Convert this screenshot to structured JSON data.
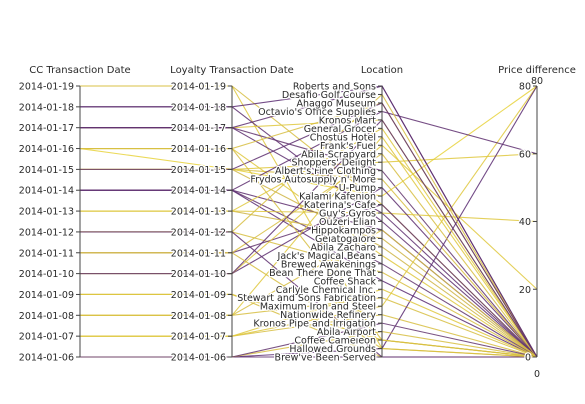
{
  "chart_data": {
    "type": "parallel_coordinates",
    "dimensions": [
      {
        "label": "CC Transaction Date",
        "ticks": [
          "2014-01-06",
          "2014-01-07",
          "2014-01-08",
          "2014-01-09",
          "2014-01-10",
          "2014-01-11",
          "2014-01-12",
          "2014-01-13",
          "2014-01-14",
          "2014-01-15",
          "2014-01-16",
          "2014-01-17",
          "2014-01-18",
          "2014-01-19"
        ]
      },
      {
        "label": "Loyalty Transaction Date",
        "ticks": [
          "2014-01-06",
          "2014-01-07",
          "2014-01-08",
          "2014-01-09",
          "2014-01-10",
          "2014-01-11",
          "2014-01-12",
          "2014-01-13",
          "2014-01-14",
          "2014-01-15",
          "2014-01-16",
          "2014-01-17",
          "2014-01-18",
          "2014-01-19"
        ]
      },
      {
        "label": "Location",
        "ticks": [
          "Brew've Been Served",
          "Hallowed Grounds",
          "Coffee Cameleon",
          "Abila Airport",
          "Kronos Pipe and Irrigation",
          "Nationwide Refinery",
          "Maximum Iron and Steel",
          "Stewart and Sons Fabrication",
          "Carlyle Chemical Inc.",
          "Coffee Shack",
          "Bean There Done That",
          "Brewed Awakenings",
          "Jack's Magical Beans",
          "Abila Zacharo",
          "Gelatogalore",
          "Hippokampos",
          "Ouzeri Elian",
          "Guy's Gyros",
          "Katerina's Cafe",
          "Kalami Kafenion",
          "U-Pump",
          "Frydos Autosupply n' More",
          "Albert's Fine Clothing",
          "Shoppers' Delight",
          "Abila Scrapyard",
          "Frank's Fuel",
          "Chostus Hotel",
          "General Grocer",
          "Kronos Mart",
          "Octavio's Office Supplies",
          "Ahaggo Museum",
          "Desafio Golf Course",
          "Roberts and Sons"
        ]
      },
      {
        "label": "Price difference",
        "min": 0,
        "max": 80,
        "ticks": [
          0,
          20,
          40,
          60,
          80
        ],
        "range_labels": [
          "0",
          "80"
        ]
      }
    ],
    "color_scale": {
      "low": "#4a1778",
      "high": "#f0dc38"
    },
    "records": [
      {
        "cc": "2014-01-19",
        "loyalty": "2014-01-19",
        "location": "Hallowed Grounds",
        "price_diff": 0,
        "c": 0.9
      },
      {
        "cc": "2014-01-19",
        "loyalty": "2014-01-19",
        "location": "Katerina's Cafe",
        "price_diff": 0,
        "c": 0.85
      },
      {
        "cc": "2014-01-18",
        "loyalty": "2014-01-18",
        "location": "Roberts and Sons",
        "price_diff": 0,
        "c": 0.1
      },
      {
        "cc": "2014-01-18",
        "loyalty": "2014-01-18",
        "location": "Ouzeri Elian",
        "price_diff": 0,
        "c": 0.12
      },
      {
        "cc": "2014-01-17",
        "loyalty": "2014-01-17",
        "location": "Kronos Mart",
        "price_diff": 0,
        "c": 0.9
      },
      {
        "cc": "2014-01-17",
        "loyalty": "2014-01-17",
        "location": "Albert's Fine Clothing",
        "price_diff": 0,
        "c": 0.15
      },
      {
        "cc": "2014-01-17",
        "loyalty": "2014-01-17",
        "location": "Guy's Gyros",
        "price_diff": 0,
        "c": 0.12
      },
      {
        "cc": "2014-01-16",
        "loyalty": "2014-01-16",
        "location": "Ahaggo Museum",
        "price_diff": 0,
        "c": 0.85
      },
      {
        "cc": "2014-01-16",
        "loyalty": "2014-01-15",
        "location": "Kalami Kafenion",
        "price_diff": 80,
        "c": 0.95
      },
      {
        "cc": "2014-01-16",
        "loyalty": "2014-01-16",
        "location": "Jack's Magical Beans",
        "price_diff": 0,
        "c": 0.9
      },
      {
        "cc": "2014-01-15",
        "loyalty": "2014-01-15",
        "location": "Shoppers' Delight",
        "price_diff": 60,
        "c": 0.9
      },
      {
        "cc": "2014-01-15",
        "loyalty": "2014-01-15",
        "location": "Frydos Autosupply n' More",
        "price_diff": 0,
        "c": 0.85
      },
      {
        "cc": "2014-01-15",
        "loyalty": "2014-01-15",
        "location": "Abila Zacharo",
        "price_diff": 0,
        "c": 0.8
      },
      {
        "cc": "2014-01-14",
        "loyalty": "2014-01-14",
        "location": "Hippokampos",
        "price_diff": 0,
        "c": 0.12
      },
      {
        "cc": "2014-01-14",
        "loyalty": "2014-01-14",
        "location": "Brewed Awakenings",
        "price_diff": 0,
        "c": 0.15
      },
      {
        "cc": "2014-01-14",
        "loyalty": "2014-01-14",
        "location": "Coffee Shack",
        "price_diff": 0,
        "c": 0.1
      },
      {
        "cc": "2014-01-13",
        "loyalty": "2014-01-13",
        "location": "Gelatogalore",
        "price_diff": 0,
        "c": 0.8
      },
      {
        "cc": "2014-01-13",
        "loyalty": "2014-01-13",
        "location": "Guy's Gyros",
        "price_diff": 40,
        "c": 0.9
      },
      {
        "cc": "2014-01-12",
        "loyalty": "2014-01-12",
        "location": "Bean There Done That",
        "price_diff": 0,
        "c": 0.85
      },
      {
        "cc": "2014-01-11",
        "loyalty": "2014-01-11",
        "location": "Katerina's Cafe",
        "price_diff": 0,
        "c": 0.15
      },
      {
        "cc": "2014-01-10",
        "loyalty": "2014-01-10",
        "location": "U-Pump",
        "price_diff": 0,
        "c": 0.12
      },
      {
        "cc": "2014-01-10",
        "loyalty": "2014-01-10",
        "location": "Frank's Fuel",
        "price_diff": 20,
        "c": 0.9
      },
      {
        "cc": "2014-01-09",
        "loyalty": "2014-01-09",
        "location": "Brew've Been Served",
        "price_diff": 0,
        "c": 0.85
      },
      {
        "cc": "2014-01-09",
        "loyalty": "2014-01-09",
        "location": "Coffee Cameleon",
        "price_diff": 0,
        "c": 0.8
      },
      {
        "cc": "2014-01-08",
        "loyalty": "2014-01-08",
        "location": "Stewart and Sons Fabrication",
        "price_diff": 0,
        "c": 0.85
      },
      {
        "cc": "2014-01-08",
        "loyalty": "2014-01-08",
        "location": "Chostus Hotel",
        "price_diff": 0,
        "c": 0.9
      },
      {
        "cc": "2014-01-07",
        "loyalty": "2014-01-07",
        "location": "Nationwide Refinery",
        "price_diff": 0,
        "c": 0.85
      },
      {
        "cc": "2014-01-07",
        "loyalty": "2014-01-07",
        "location": "Maximum Iron and Steel",
        "price_diff": 80,
        "c": 0.9
      },
      {
        "cc": "2014-01-06",
        "loyalty": "2014-01-06",
        "location": "Brew've Been Served",
        "price_diff": 0,
        "c": 0.12
      },
      {
        "cc": "2014-01-06",
        "loyalty": "2014-01-06",
        "location": "Hallowed Grounds",
        "price_diff": 80,
        "c": 0.1
      },
      {
        "cc": "2014-01-06",
        "loyalty": "2014-01-06",
        "location": "Abila Airport",
        "price_diff": 0,
        "c": 0.85
      },
      {
        "cc": "2014-01-06",
        "loyalty": "2014-01-06",
        "location": "Kronos Pipe and Irrigation",
        "price_diff": 0,
        "c": 0.15
      },
      {
        "cc": "2014-01-07",
        "loyalty": "2014-01-07",
        "location": "Carlyle Chemical Inc.",
        "price_diff": 0,
        "c": 0.9
      },
      {
        "cc": "2014-01-13",
        "loyalty": "2014-01-13",
        "location": "General Grocer",
        "price_diff": 0,
        "c": 0.9
      },
      {
        "cc": "2014-01-14",
        "loyalty": "2014-01-14",
        "location": "Octavio's Office Supplies",
        "price_diff": 60,
        "c": 0.12
      },
      {
        "cc": "2014-01-12",
        "loyalty": "2014-01-12",
        "location": "Desafio Golf Course",
        "price_diff": 0,
        "c": 0.85
      },
      {
        "cc": "2014-01-11",
        "loyalty": "2014-01-11",
        "location": "Abila Scrapyard",
        "price_diff": 0,
        "c": 0.85
      },
      {
        "cc": "2014-01-10",
        "loyalty": "2014-01-10",
        "location": "Kronos Mart",
        "price_diff": 0,
        "c": 0.12
      },
      {
        "cc": "2014-01-09",
        "loyalty": "2014-01-09",
        "location": "Coffee Cameleon",
        "price_diff": 0,
        "c": 0.9
      },
      {
        "cc": "2014-01-08",
        "loyalty": "2014-01-08",
        "location": "Hippokampos",
        "price_diff": 0,
        "c": 0.85
      },
      {
        "cc": "2014-01-17",
        "loyalty": "2014-01-17",
        "location": "Roberts and Sons",
        "price_diff": 0,
        "c": 0.12
      },
      {
        "cc": "2014-01-15",
        "loyalty": "2014-01-15",
        "location": "Ahaggo Museum",
        "price_diff": 0,
        "c": 0.12
      },
      {
        "cc": "2014-01-12",
        "loyalty": "2014-01-12",
        "location": "Brew've Been Served",
        "price_diff": 0,
        "c": 0.12
      },
      {
        "cc": "2014-01-16",
        "loyalty": "2014-01-16",
        "location": "Coffee Cameleon",
        "price_diff": 0,
        "c": 0.85
      },
      {
        "cc": "2014-01-11",
        "loyalty": "2014-01-11",
        "location": "Hallowed Grounds",
        "price_diff": 0,
        "c": 0.85
      }
    ]
  }
}
